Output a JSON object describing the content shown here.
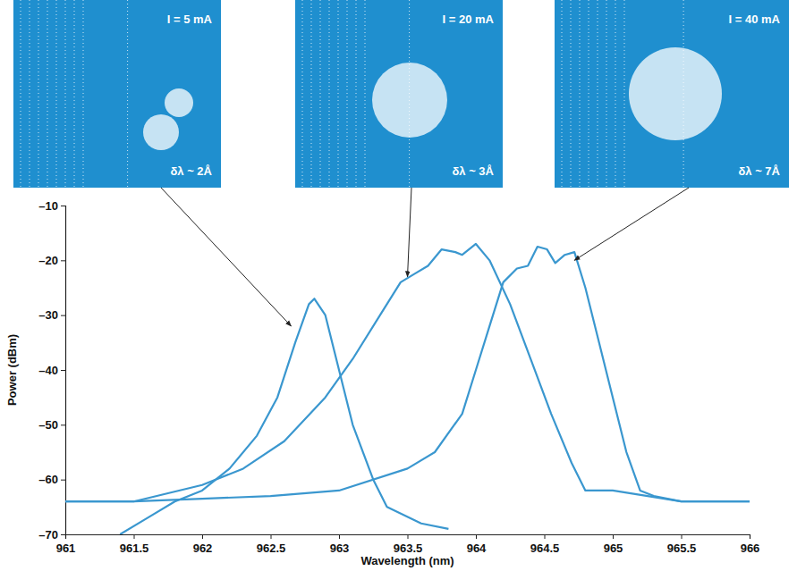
{
  "chart_data": {
    "type": "line",
    "x_label": "Wavelength (nm)",
    "y_label": "Power (dBm)",
    "xlim": [
      961,
      966
    ],
    "xticks": [
      961,
      961.5,
      962,
      962.5,
      963,
      963.5,
      964,
      964.5,
      965,
      965.5,
      966
    ],
    "ylim": [
      -70,
      -10
    ],
    "yticks": [
      {
        "value": -70,
        "label": "–70"
      },
      {
        "value": -60,
        "label": "–60"
      },
      {
        "value": -50,
        "label": "–50"
      },
      {
        "value": -40,
        "label": "–40"
      },
      {
        "value": -30,
        "label": "–30"
      },
      {
        "value": -20,
        "label": "–20"
      },
      {
        "value": -10,
        "label": "–10"
      }
    ],
    "grid": false,
    "series": [
      {
        "color": "#3a97cf",
        "x": [
          961.4,
          961.6,
          961.8,
          962.0,
          962.2,
          962.4,
          962.55,
          962.68,
          962.78,
          962.82,
          962.9,
          963.0,
          963.1,
          963.25,
          963.35,
          963.6,
          963.8
        ],
        "values": [
          -70,
          -67,
          -64,
          -62,
          -58,
          -52,
          -45,
          -35,
          -28,
          -27,
          -30,
          -40,
          -50,
          -60,
          -65,
          -68,
          -69
        ]
      },
      {
        "color": "#3a97cf",
        "x": [
          961.0,
          961.5,
          962.0,
          962.3,
          962.6,
          962.9,
          963.1,
          963.3,
          963.45,
          963.55,
          963.65,
          963.75,
          963.85,
          963.9,
          964.0,
          964.1,
          964.25,
          964.4,
          964.55,
          964.7,
          964.8,
          964.9,
          965.0,
          965.5,
          966.0
        ],
        "values": [
          -64,
          -64,
          -61,
          -58,
          -53,
          -45,
          -38,
          -30,
          -24,
          -22.5,
          -21,
          -18,
          -18.5,
          -19,
          -17,
          -20,
          -28,
          -38,
          -48,
          -57,
          -62,
          -62,
          -62,
          -64,
          -64
        ]
      },
      {
        "color": "#3a97cf",
        "x": [
          961.0,
          961.5,
          962.0,
          962.5,
          963.0,
          963.5,
          963.7,
          963.9,
          964.0,
          964.1,
          964.2,
          964.3,
          964.38,
          964.45,
          964.52,
          964.58,
          964.65,
          964.72,
          964.8,
          964.9,
          965.0,
          965.1,
          965.2,
          965.3,
          965.5,
          966.0
        ],
        "values": [
          -64,
          -64,
          -63.5,
          -63,
          -62,
          -58,
          -55,
          -48,
          -40,
          -32,
          -24,
          -21.5,
          -21,
          -17.5,
          -18,
          -20.5,
          -19,
          -18.5,
          -25,
          -35,
          -45,
          -55,
          -62,
          -63,
          -64,
          -64
        ]
      }
    ],
    "annotations": [
      {
        "text": "I = 5 mA",
        "subtext": "δλ ~ 2Å",
        "x": 962.65,
        "y": -32
      },
      {
        "text": "I = 20 mA",
        "subtext": "δλ ~ 3Å",
        "x": 963.5,
        "y": -23
      },
      {
        "text": "I = 40 mA",
        "subtext": "δλ ~ 7Å",
        "x": 964.72,
        "y": -20
      }
    ]
  }
}
